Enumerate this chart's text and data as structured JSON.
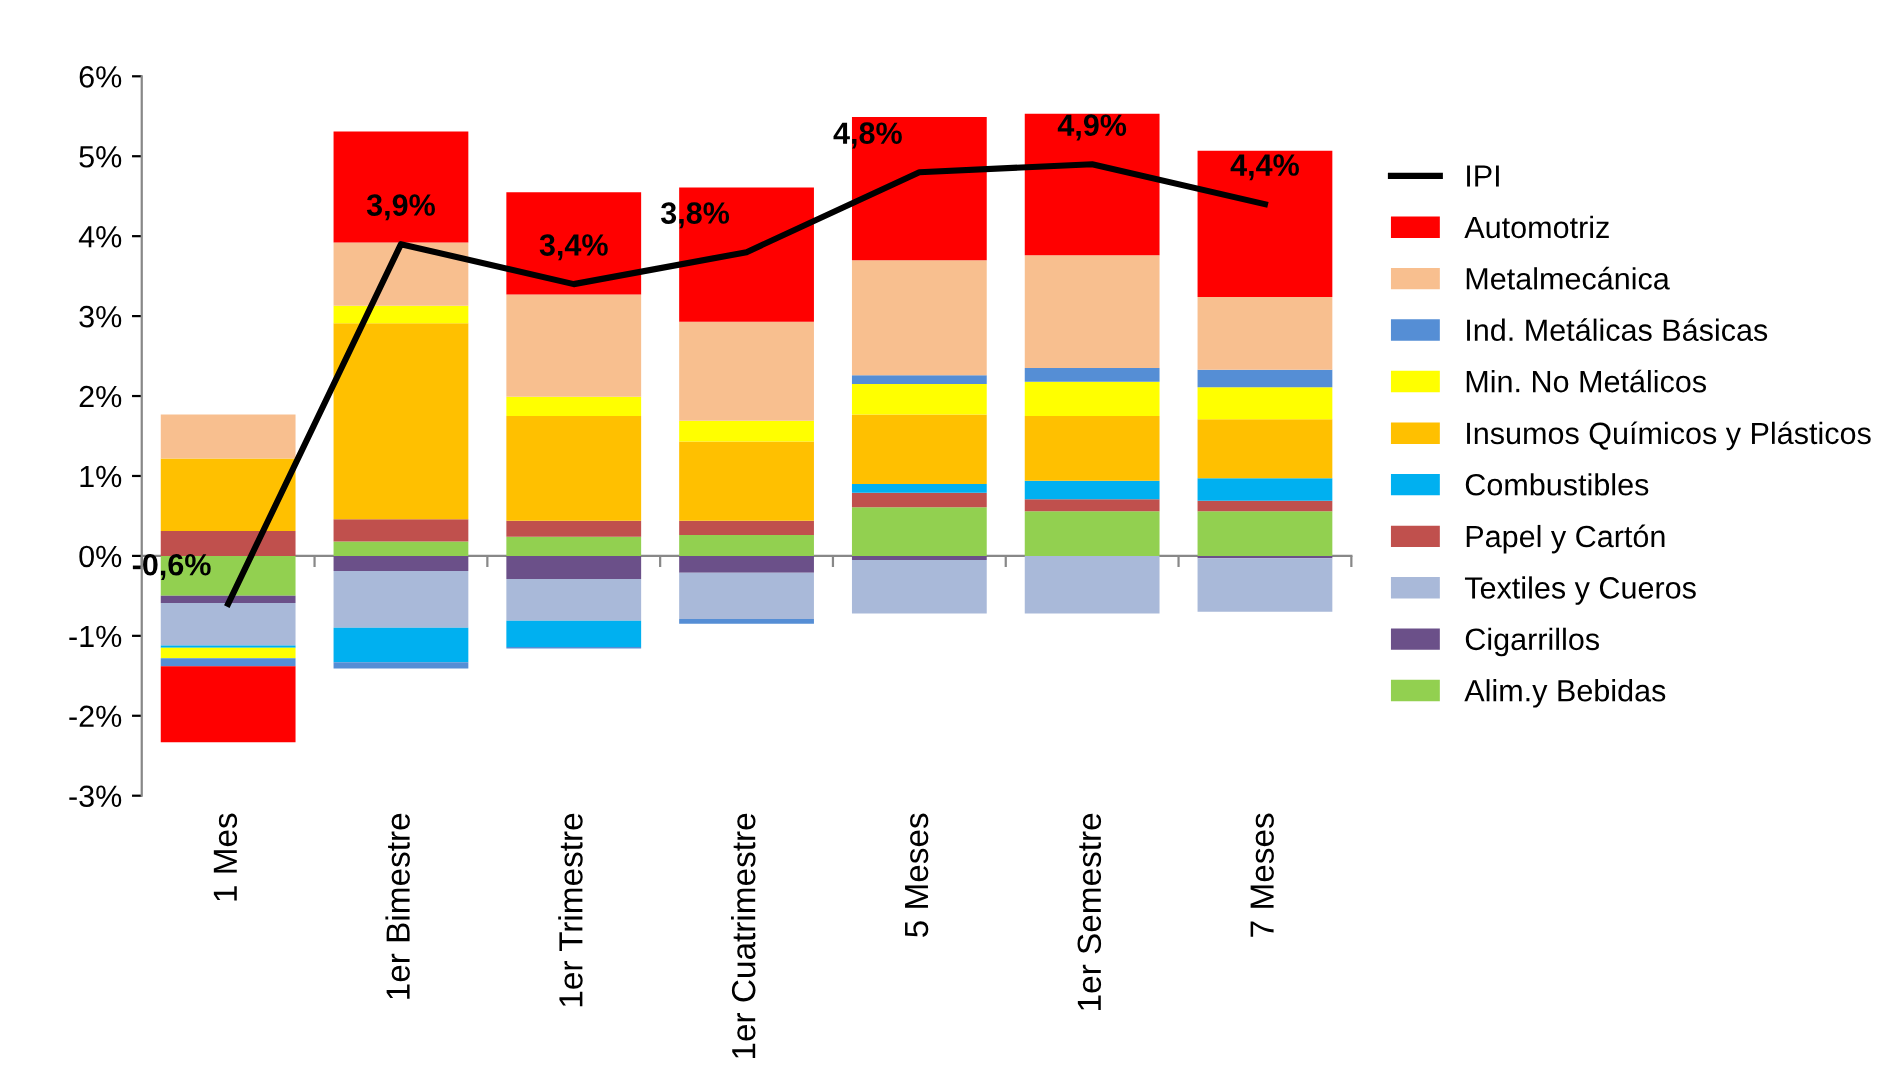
{
  "chart_data": {
    "type": "bar",
    "stacked": true,
    "categories": [
      "1 Mes",
      "1er Bimestre",
      "1er Trimestre",
      "1er Cuatrimestre",
      "5 Meses",
      "1er Semestre",
      "7 Meses"
    ],
    "series": [
      {
        "name": "Alim.y Bebidas",
        "color": "#92d050",
        "values": [
          -0.5,
          0.18,
          0.24,
          0.26,
          0.61,
          0.56,
          0.56
        ]
      },
      {
        "name": "Cigarrillos",
        "color": "#6b5089",
        "values": [
          -0.09,
          -0.19,
          -0.29,
          -0.21,
          -0.05,
          0,
          -0.03
        ]
      },
      {
        "name": "Textiles y Cueros",
        "color": "#a9b9d9",
        "values": [
          -0.53,
          -0.71,
          -0.52,
          -0.58,
          -0.67,
          -0.72,
          -0.67
        ]
      },
      {
        "name": "Papel y Cartón",
        "color": "#c0504d",
        "values": [
          0.31,
          0.28,
          0.2,
          0.18,
          0.18,
          0.15,
          0.13
        ]
      },
      {
        "name": "Combustibles",
        "color": "#00b0f0",
        "values": [
          -0.03,
          -0.43,
          -0.33,
          0,
          0.11,
          0.23,
          0.28
        ]
      },
      {
        "name": "Insumos Químicos y Plásticos",
        "color": "#ffc000",
        "values": [
          0.91,
          2.45,
          1.31,
          0.99,
          0.87,
          0.81,
          0.74
        ]
      },
      {
        "name": "Min. No Metálicos",
        "color": "#ffff00",
        "values": [
          -0.13,
          0.22,
          0.24,
          0.26,
          0.38,
          0.43,
          0.4
        ]
      },
      {
        "name": "Ind. Metálicas Básicas",
        "color": "#558ed5",
        "values": [
          -0.1,
          -0.08,
          -0.02,
          -0.06,
          0.11,
          0.17,
          0.22
        ]
      },
      {
        "name": "Metalmecánica",
        "color": "#f8bf8f",
        "values": [
          0.55,
          0.79,
          1.28,
          1.24,
          1.44,
          1.41,
          0.91
        ]
      },
      {
        "name": "Automotriz",
        "color": "#ff0000",
        "values": [
          -0.95,
          1.39,
          1.28,
          1.68,
          1.79,
          1.77,
          1.83
        ]
      },
      {
        "name": "IPI",
        "type": "line",
        "color": "#000000",
        "values": [
          -0.6,
          3.9,
          3.4,
          3.8,
          4.8,
          4.9,
          4.4
        ],
        "value_labels": [
          "-0,6%",
          "3,9%",
          "3,4%",
          "3,8%",
          "4,8%",
          "4,9%",
          "4,4%"
        ]
      }
    ],
    "ylim": [
      -3,
      6
    ],
    "yticks": [
      {
        "value": -3,
        "label": "-3%"
      },
      {
        "value": -2,
        "label": "-2%"
      },
      {
        "value": -1,
        "label": "-1%"
      },
      {
        "value": 0,
        "label": "0%"
      },
      {
        "value": 1,
        "label": "1%"
      },
      {
        "value": 2,
        "label": "2%"
      },
      {
        "value": 3,
        "label": "3%"
      },
      {
        "value": 4,
        "label": "4%"
      },
      {
        "value": 5,
        "label": "5%"
      },
      {
        "value": 6,
        "label": "6%"
      }
    ],
    "legend": "right",
    "line_style": "solid",
    "marker": "none"
  }
}
